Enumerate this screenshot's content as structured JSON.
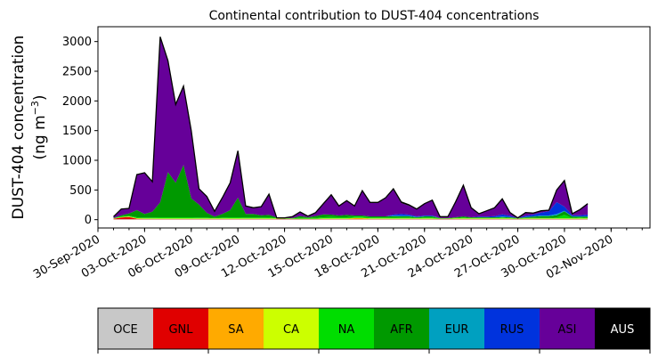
{
  "chart_data": {
    "type": "area",
    "title": "Continental contribution to DUST-404 concentrations",
    "ylabel_line1": "DUST-404 concentration",
    "ylabel_line2_prefix": "(ng m",
    "ylabel_line2_sup": "−3",
    "ylabel_line2_suffix": ")",
    "ylim": [
      -140,
      3250
    ],
    "yticks": [
      0,
      500,
      1000,
      1500,
      2000,
      2500,
      3000
    ],
    "ytick_labels": [
      "0",
      "500",
      "1000",
      "1500",
      "2000",
      "2500",
      "3000"
    ],
    "xlim": [
      "2020-09-30T00:00",
      "2020-11-04T12:00"
    ],
    "xticks": [
      "2020-09-30",
      "2020-10-03",
      "2020-10-06",
      "2020-10-09",
      "2020-10-12",
      "2020-10-15",
      "2020-10-18",
      "2020-10-21",
      "2020-10-24",
      "2020-10-27",
      "2020-10-30",
      "2020-11-02"
    ],
    "xtick_labels": [
      "30-Sep-2020",
      "03-Oct-2020",
      "06-Oct-2020",
      "09-Oct-2020",
      "12-Oct-2020",
      "15-Oct-2020",
      "18-Oct-2020",
      "21-Oct-2020",
      "24-Oct-2020",
      "27-Oct-2020",
      "30-Oct-2020",
      "02-Nov-2020"
    ],
    "x_start": "2020-10-01T00:00",
    "x_step_hours": 12,
    "total": [
      50,
      180,
      190,
      760,
      790,
      640,
      3080,
      2680,
      1940,
      2250,
      1500,
      520,
      390,
      140,
      370,
      620,
      1160,
      230,
      200,
      220,
      430,
      30,
      30,
      50,
      130,
      60,
      120,
      270,
      420,
      230,
      320,
      230,
      490,
      290,
      290,
      370,
      520,
      300,
      250,
      180,
      270,
      330,
      50,
      50,
      300,
      580,
      200,
      100,
      150,
      200,
      350,
      120,
      30,
      120,
      110,
      150,
      160,
      500,
      660,
      100,
      170,
      270
    ],
    "series": [
      {
        "name": "OCE",
        "color": "#c8c8c8",
        "values": [
          5,
          5,
          5,
          5,
          5,
          5,
          5,
          5,
          5,
          5,
          5,
          5,
          5,
          5,
          5,
          5,
          5,
          5,
          5,
          5,
          5,
          5,
          5,
          5,
          5,
          5,
          5,
          5,
          5,
          5,
          5,
          5,
          5,
          5,
          5,
          5,
          5,
          5,
          5,
          5,
          5,
          5,
          5,
          5,
          5,
          5,
          5,
          5,
          5,
          5,
          5,
          5,
          5,
          5,
          5,
          5,
          5,
          5,
          5,
          5,
          5,
          5
        ]
      },
      {
        "name": "GNL",
        "color": "#e00000",
        "values": [
          10,
          30,
          40,
          10,
          5,
          5,
          5,
          5,
          5,
          5,
          5,
          5,
          5,
          5,
          5,
          5,
          5,
          5,
          5,
          5,
          5,
          5,
          5,
          5,
          5,
          5,
          5,
          5,
          5,
          5,
          5,
          5,
          5,
          5,
          5,
          5,
          5,
          5,
          5,
          5,
          5,
          5,
          5,
          5,
          5,
          5,
          5,
          5,
          5,
          5,
          5,
          5,
          5,
          5,
          5,
          5,
          5,
          5,
          5,
          5,
          5,
          5
        ]
      },
      {
        "name": "SA",
        "color": "#ffaa00",
        "values": [
          3,
          5,
          5,
          5,
          5,
          5,
          5,
          5,
          5,
          5,
          5,
          5,
          5,
          5,
          5,
          5,
          5,
          5,
          5,
          5,
          5,
          5,
          3,
          3,
          3,
          3,
          3,
          5,
          5,
          5,
          5,
          15,
          15,
          5,
          5,
          5,
          5,
          5,
          5,
          5,
          5,
          5,
          3,
          3,
          5,
          5,
          5,
          5,
          5,
          5,
          5,
          5,
          3,
          5,
          5,
          5,
          5,
          5,
          5,
          5,
          5,
          5
        ]
      },
      {
        "name": "CA",
        "color": "#ccff00",
        "values": [
          3,
          5,
          5,
          5,
          5,
          5,
          5,
          5,
          5,
          5,
          5,
          5,
          5,
          5,
          5,
          5,
          5,
          5,
          5,
          5,
          5,
          5,
          3,
          3,
          3,
          3,
          3,
          5,
          5,
          5,
          5,
          5,
          5,
          5,
          5,
          5,
          5,
          5,
          5,
          5,
          5,
          5,
          3,
          3,
          5,
          5,
          5,
          5,
          5,
          5,
          5,
          5,
          3,
          5,
          5,
          5,
          5,
          5,
          5,
          5,
          5,
          5
        ]
      },
      {
        "name": "NA",
        "color": "#00dd00",
        "values": [
          5,
          10,
          10,
          15,
          15,
          15,
          20,
          20,
          20,
          20,
          20,
          15,
          15,
          10,
          15,
          20,
          20,
          15,
          15,
          15,
          20,
          10,
          5,
          5,
          15,
          10,
          15,
          20,
          25,
          20,
          20,
          20,
          20,
          15,
          15,
          15,
          20,
          15,
          15,
          10,
          15,
          15,
          5,
          5,
          10,
          15,
          10,
          10,
          10,
          10,
          15,
          10,
          5,
          10,
          10,
          10,
          10,
          15,
          60,
          10,
          15,
          10
        ]
      },
      {
        "name": "AFR",
        "color": "#009900",
        "values": [
          0,
          20,
          40,
          120,
          60,
          100,
          250,
          760,
          580,
          880,
          320,
          220,
          80,
          20,
          60,
          120,
          330,
          60,
          60,
          40,
          40,
          5,
          5,
          5,
          30,
          15,
          30,
          50,
          40,
          30,
          40,
          20,
          20,
          20,
          20,
          20,
          20,
          20,
          20,
          10,
          20,
          20,
          5,
          5,
          10,
          20,
          10,
          10,
          10,
          10,
          10,
          10,
          5,
          10,
          20,
          30,
          30,
          40,
          60,
          20,
          15,
          20
        ]
      },
      {
        "name": "EUR",
        "color": "#00a0c0",
        "values": [
          0,
          0,
          0,
          0,
          0,
          0,
          0,
          0,
          0,
          0,
          0,
          0,
          0,
          0,
          0,
          0,
          0,
          0,
          0,
          0,
          0,
          0,
          0,
          0,
          0,
          0,
          0,
          0,
          0,
          0,
          0,
          0,
          0,
          0,
          0,
          0,
          5,
          10,
          10,
          5,
          5,
          5,
          0,
          0,
          0,
          0,
          0,
          0,
          0,
          0,
          5,
          5,
          0,
          5,
          5,
          10,
          10,
          20,
          10,
          5,
          5,
          5
        ]
      },
      {
        "name": "RUS",
        "color": "#0033dd",
        "values": [
          0,
          0,
          0,
          0,
          0,
          0,
          0,
          0,
          0,
          0,
          0,
          0,
          0,
          0,
          0,
          0,
          0,
          0,
          0,
          0,
          0,
          0,
          0,
          0,
          0,
          0,
          0,
          0,
          0,
          0,
          0,
          0,
          0,
          0,
          0,
          0,
          20,
          30,
          20,
          10,
          10,
          10,
          0,
          0,
          0,
          0,
          0,
          10,
          10,
          20,
          40,
          20,
          0,
          20,
          30,
          50,
          70,
          200,
          70,
          20,
          20,
          30
        ]
      },
      {
        "name": "ASI",
        "color": "#660099",
        "values": [
          24,
          105,
          80,
          600,
          695,
          505,
          2790,
          1880,
          1320,
          1330,
          1140,
          270,
          275,
          90,
          275,
          460,
          785,
          140,
          115,
          140,
          350,
          0,
          3,
          19,
          64,
          14,
          59,
          175,
          330,
          160,
          240,
          160,
          410,
          235,
          230,
          310,
          420,
          185,
          150,
          125,
          200,
          260,
          26,
          26,
          255,
          525,
          160,
          50,
          95,
          130,
          260,
          55,
          6,
          55,
          20,
          30,
          20,
          200,
          430,
          20,
          95,
          175
        ]
      },
      {
        "name": "AUS",
        "color": "#000000",
        "values": [
          0,
          0,
          0,
          0,
          0,
          0,
          0,
          0,
          0,
          0,
          0,
          0,
          0,
          0,
          0,
          0,
          0,
          0,
          0,
          0,
          0,
          0,
          0,
          0,
          0,
          0,
          0,
          0,
          0,
          0,
          0,
          0,
          0,
          0,
          0,
          0,
          0,
          0,
          0,
          0,
          0,
          0,
          0,
          0,
          0,
          0,
          0,
          0,
          0,
          0,
          0,
          0,
          0,
          0,
          0,
          0,
          0,
          0,
          0,
          0,
          0,
          0
        ]
      }
    ],
    "legend_placement": "bottom",
    "legend_text_colors": [
      "#000000",
      "#000000",
      "#000000",
      "#000000",
      "#000000",
      "#000000",
      "#000000",
      "#000000",
      "#000000",
      "#ffffff"
    ],
    "grid": false
  }
}
